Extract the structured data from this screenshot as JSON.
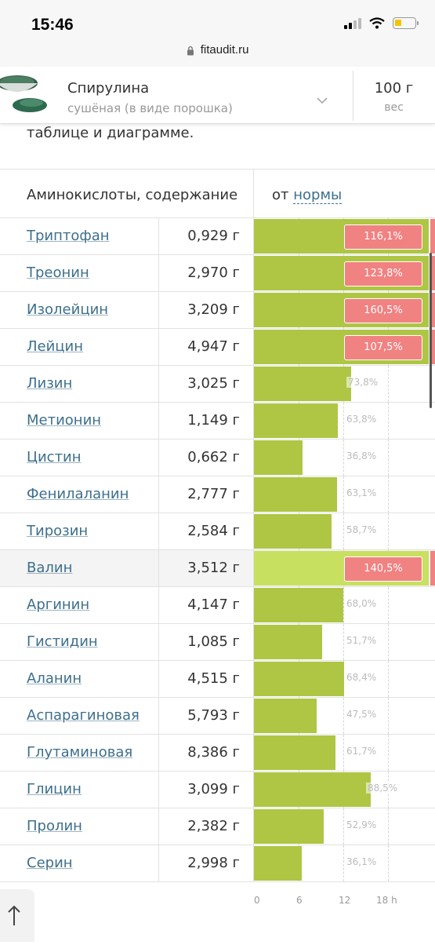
{
  "status_bar": {
    "time": "15:46"
  },
  "url_bar": {
    "domain": "fitaudit.ru"
  },
  "product": {
    "name": "Спирулина",
    "variant": "сушёная (в виде порошка)",
    "weight_value": "100 г",
    "weight_label": "вес"
  },
  "intro_text": "таблице и диаграмме.",
  "table": {
    "header_left": "Аминокислоты, содержание",
    "header_right_prefix": "от",
    "header_right_link": "нормы",
    "rows": [
      {
        "name": "Триптофан",
        "amount": "0,929 г",
        "percent_label": "116,1%",
        "percent": 116.1
      },
      {
        "name": "Треонин",
        "amount": "2,970 г",
        "percent_label": "123,8%",
        "percent": 123.8
      },
      {
        "name": "Изолейцин",
        "amount": "3,209 г",
        "percent_label": "160,5%",
        "percent": 160.5
      },
      {
        "name": "Лейцин",
        "amount": "4,947 г",
        "percent_label": "107,5%",
        "percent": 107.5
      },
      {
        "name": "Лизин",
        "amount": "3,025 г",
        "percent_label": "73,8%",
        "percent": 73.8
      },
      {
        "name": "Метионин",
        "amount": "1,149 г",
        "percent_label": "63,8%",
        "percent": 63.8
      },
      {
        "name": "Цистин",
        "amount": "0,662 г",
        "percent_label": "36,8%",
        "percent": 36.8
      },
      {
        "name": "Фенилаланин",
        "amount": "2,777 г",
        "percent_label": "63,1%",
        "percent": 63.1
      },
      {
        "name": "Тирозин",
        "amount": "2,584 г",
        "percent_label": "58,7%",
        "percent": 58.7
      },
      {
        "name": "Валин",
        "amount": "3,512 г",
        "percent_label": "140,5%",
        "percent": 140.5,
        "highlighted": true
      },
      {
        "name": "Аргинин",
        "amount": "4,147 г",
        "percent_label": "68,0%",
        "percent": 68.0
      },
      {
        "name": "Гистидин",
        "amount": "1,085 г",
        "percent_label": "51,7%",
        "percent": 51.7
      },
      {
        "name": "Аланин",
        "amount": "4,515 г",
        "percent_label": "68,4%",
        "percent": 68.4
      },
      {
        "name": "Аспарагиновая",
        "amount": "5,793 г",
        "percent_label": "47,5%",
        "percent": 47.5
      },
      {
        "name": "Глутаминовая",
        "amount": "8,386 г",
        "percent_label": "61,7%",
        "percent": 61.7
      },
      {
        "name": "Глицин",
        "amount": "3,099 г",
        "percent_label": "88,5%",
        "percent": 88.5
      },
      {
        "name": "Пролин",
        "amount": "2,382 г",
        "percent_label": "52,9%",
        "percent": 52.9
      },
      {
        "name": "Серин",
        "amount": "2,998 г",
        "percent_label": "36,1%",
        "percent": 36.1
      }
    ],
    "axis_ticks": [
      "0",
      "6",
      "12",
      "18 h"
    ]
  },
  "colors": {
    "bar": "#aec644",
    "bar_highlight": "#c8e060",
    "over_norm": "#f08282",
    "link": "#3d6f8c"
  },
  "icons": [
    "lock-icon",
    "signal-icon",
    "wifi-icon",
    "battery-icon",
    "chevron-down-icon",
    "arrow-up-icon"
  ]
}
